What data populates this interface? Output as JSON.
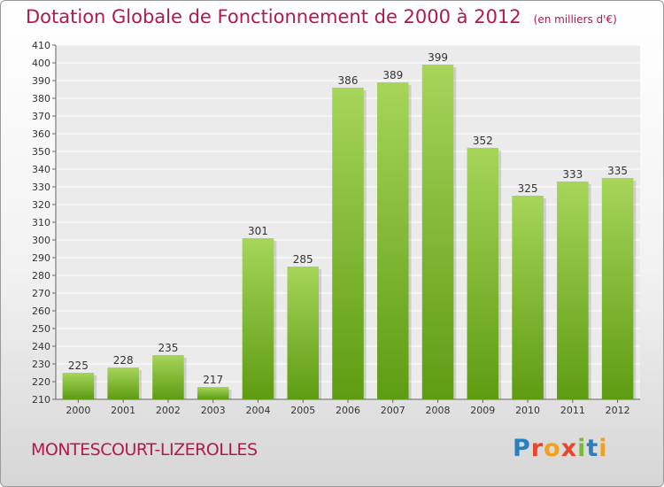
{
  "header": {
    "title": "Dotation Globale de Fonctionnement de 2000 à 2012",
    "subtitle": "(en milliers d'€)"
  },
  "footer": {
    "commune": "MONTESCOURT-LIZEROLLES",
    "logo": "Proxiti"
  },
  "colors": {
    "title": "#b5174f",
    "bar_top": "#a6d55a",
    "bar_bottom": "#5e9c12"
  },
  "chart_data": {
    "type": "bar",
    "categories": [
      "2000",
      "2001",
      "2002",
      "2003",
      "2004",
      "2005",
      "2006",
      "2007",
      "2008",
      "2009",
      "2010",
      "2011",
      "2012"
    ],
    "values": [
      225,
      228,
      235,
      217,
      301,
      285,
      386,
      389,
      399,
      352,
      325,
      333,
      335
    ],
    "title": "Dotation Globale de Fonctionnement de 2000 à 2012",
    "subtitle": "(en milliers d'€)",
    "xlabel": "",
    "ylabel": "",
    "ylim": [
      210,
      410
    ],
    "ytick_step": 10,
    "grid": true,
    "legend": "none"
  }
}
